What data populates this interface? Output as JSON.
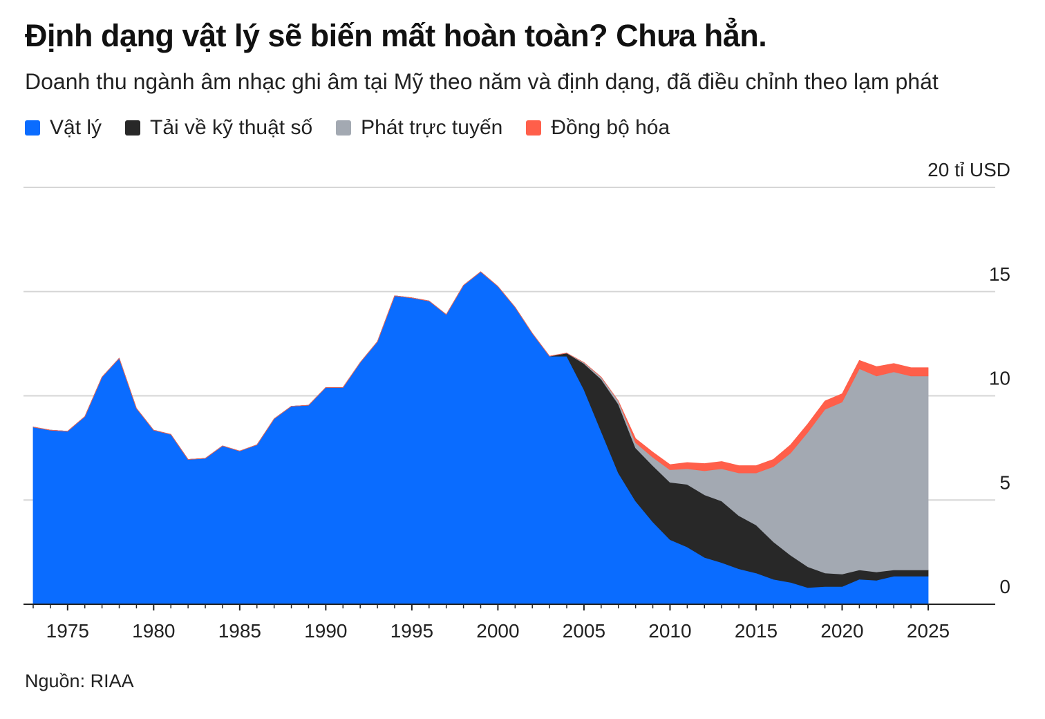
{
  "header": {
    "title": "Định dạng vật lý sẽ biến mất hoàn toàn? Chưa hẳn.",
    "subtitle": "Doanh thu ngành âm nhạc ghi âm tại Mỹ theo năm và định dạng, đã điều chỉnh theo lạm phát"
  },
  "footer": {
    "source": "Nguồn: RIAA"
  },
  "chart_data": {
    "type": "area",
    "stacked": true,
    "x": [
      1973,
      1974,
      1975,
      1976,
      1977,
      1978,
      1979,
      1980,
      1981,
      1982,
      1983,
      1984,
      1985,
      1986,
      1987,
      1988,
      1989,
      1990,
      1991,
      1992,
      1993,
      1994,
      1995,
      1996,
      1997,
      1998,
      1999,
      2000,
      2001,
      2002,
      2003,
      2004,
      2005,
      2006,
      2007,
      2008,
      2009,
      2010,
      2011,
      2012,
      2013,
      2014,
      2015,
      2016,
      2017,
      2018,
      2019,
      2020,
      2021,
      2022,
      2023,
      2024,
      2025
    ],
    "series": [
      {
        "name": "Vật lý",
        "color": "#0a6cff",
        "values": [
          8.5,
          8.35,
          8.3,
          9.0,
          10.9,
          11.8,
          9.4,
          8.35,
          8.15,
          6.95,
          7.0,
          7.6,
          7.35,
          7.65,
          8.9,
          9.5,
          9.55,
          10.4,
          10.4,
          11.6,
          12.6,
          14.8,
          14.7,
          14.55,
          13.9,
          15.3,
          15.95,
          15.25,
          14.25,
          13.0,
          11.9,
          11.9,
          10.3,
          8.3,
          6.3,
          4.95,
          3.95,
          3.1,
          2.75,
          2.25,
          2.0,
          1.7,
          1.5,
          1.2,
          1.05,
          0.8,
          0.85,
          0.85,
          1.2,
          1.15,
          1.35,
          1.35,
          1.35
        ]
      },
      {
        "name": "Tải về kỹ thuật số",
        "color": "#282828",
        "values": [
          0,
          0,
          0,
          0,
          0,
          0,
          0,
          0,
          0,
          0,
          0,
          0,
          0,
          0,
          0,
          0,
          0,
          0,
          0,
          0,
          0,
          0,
          0,
          0,
          0,
          0,
          0,
          0,
          0,
          0,
          0,
          0.15,
          1.25,
          2.5,
          3.3,
          2.55,
          2.7,
          2.75,
          3.0,
          3.0,
          2.95,
          2.55,
          2.3,
          1.8,
          1.3,
          1.0,
          0.65,
          0.6,
          0.45,
          0.4,
          0.3,
          0.3,
          0.3
        ]
      },
      {
        "name": "Phát trực tuyến",
        "color": "#a3a9b2",
        "values": [
          0,
          0,
          0,
          0,
          0,
          0,
          0,
          0,
          0,
          0,
          0,
          0,
          0,
          0,
          0,
          0,
          0,
          0,
          0,
          0,
          0,
          0,
          0,
          0,
          0,
          0,
          0,
          0,
          0,
          0,
          0,
          0,
          0.05,
          0.1,
          0.15,
          0.25,
          0.4,
          0.6,
          0.75,
          1.15,
          1.55,
          2.05,
          2.5,
          3.6,
          4.9,
          6.45,
          7.85,
          8.25,
          9.65,
          9.4,
          9.5,
          9.3,
          9.3
        ]
      },
      {
        "name": "Đồng bộ hóa",
        "color": "#ff5f4a",
        "values": [
          0,
          0,
          0,
          0,
          0,
          0,
          0,
          0,
          0,
          0,
          0,
          0,
          0,
          0,
          0,
          0,
          0,
          0,
          0,
          0,
          0,
          0,
          0,
          0,
          0,
          0,
          0,
          0,
          0,
          0,
          0,
          0,
          0,
          0,
          0,
          0.2,
          0.25,
          0.25,
          0.3,
          0.35,
          0.35,
          0.35,
          0.35,
          0.35,
          0.4,
          0.4,
          0.4,
          0.4,
          0.4,
          0.45,
          0.4,
          0.4,
          0.4
        ]
      }
    ],
    "ylim": [
      0,
      20
    ],
    "yticks": [
      0,
      5,
      10,
      15,
      20
    ],
    "ytick_labels": [
      "0",
      "5",
      "10",
      "15",
      "20 tỉ USD"
    ],
    "xticks": [
      1975,
      1980,
      1985,
      1990,
      1995,
      2000,
      2005,
      2010,
      2015,
      2020,
      2025
    ],
    "xtick_labels": [
      "1975",
      "1980",
      "1985",
      "1990",
      "1995",
      "2000",
      "2005",
      "2010",
      "2015",
      "2020",
      "2025"
    ],
    "xlim": [
      1973,
      2025
    ],
    "grid": true,
    "legend_position": "top-left"
  }
}
